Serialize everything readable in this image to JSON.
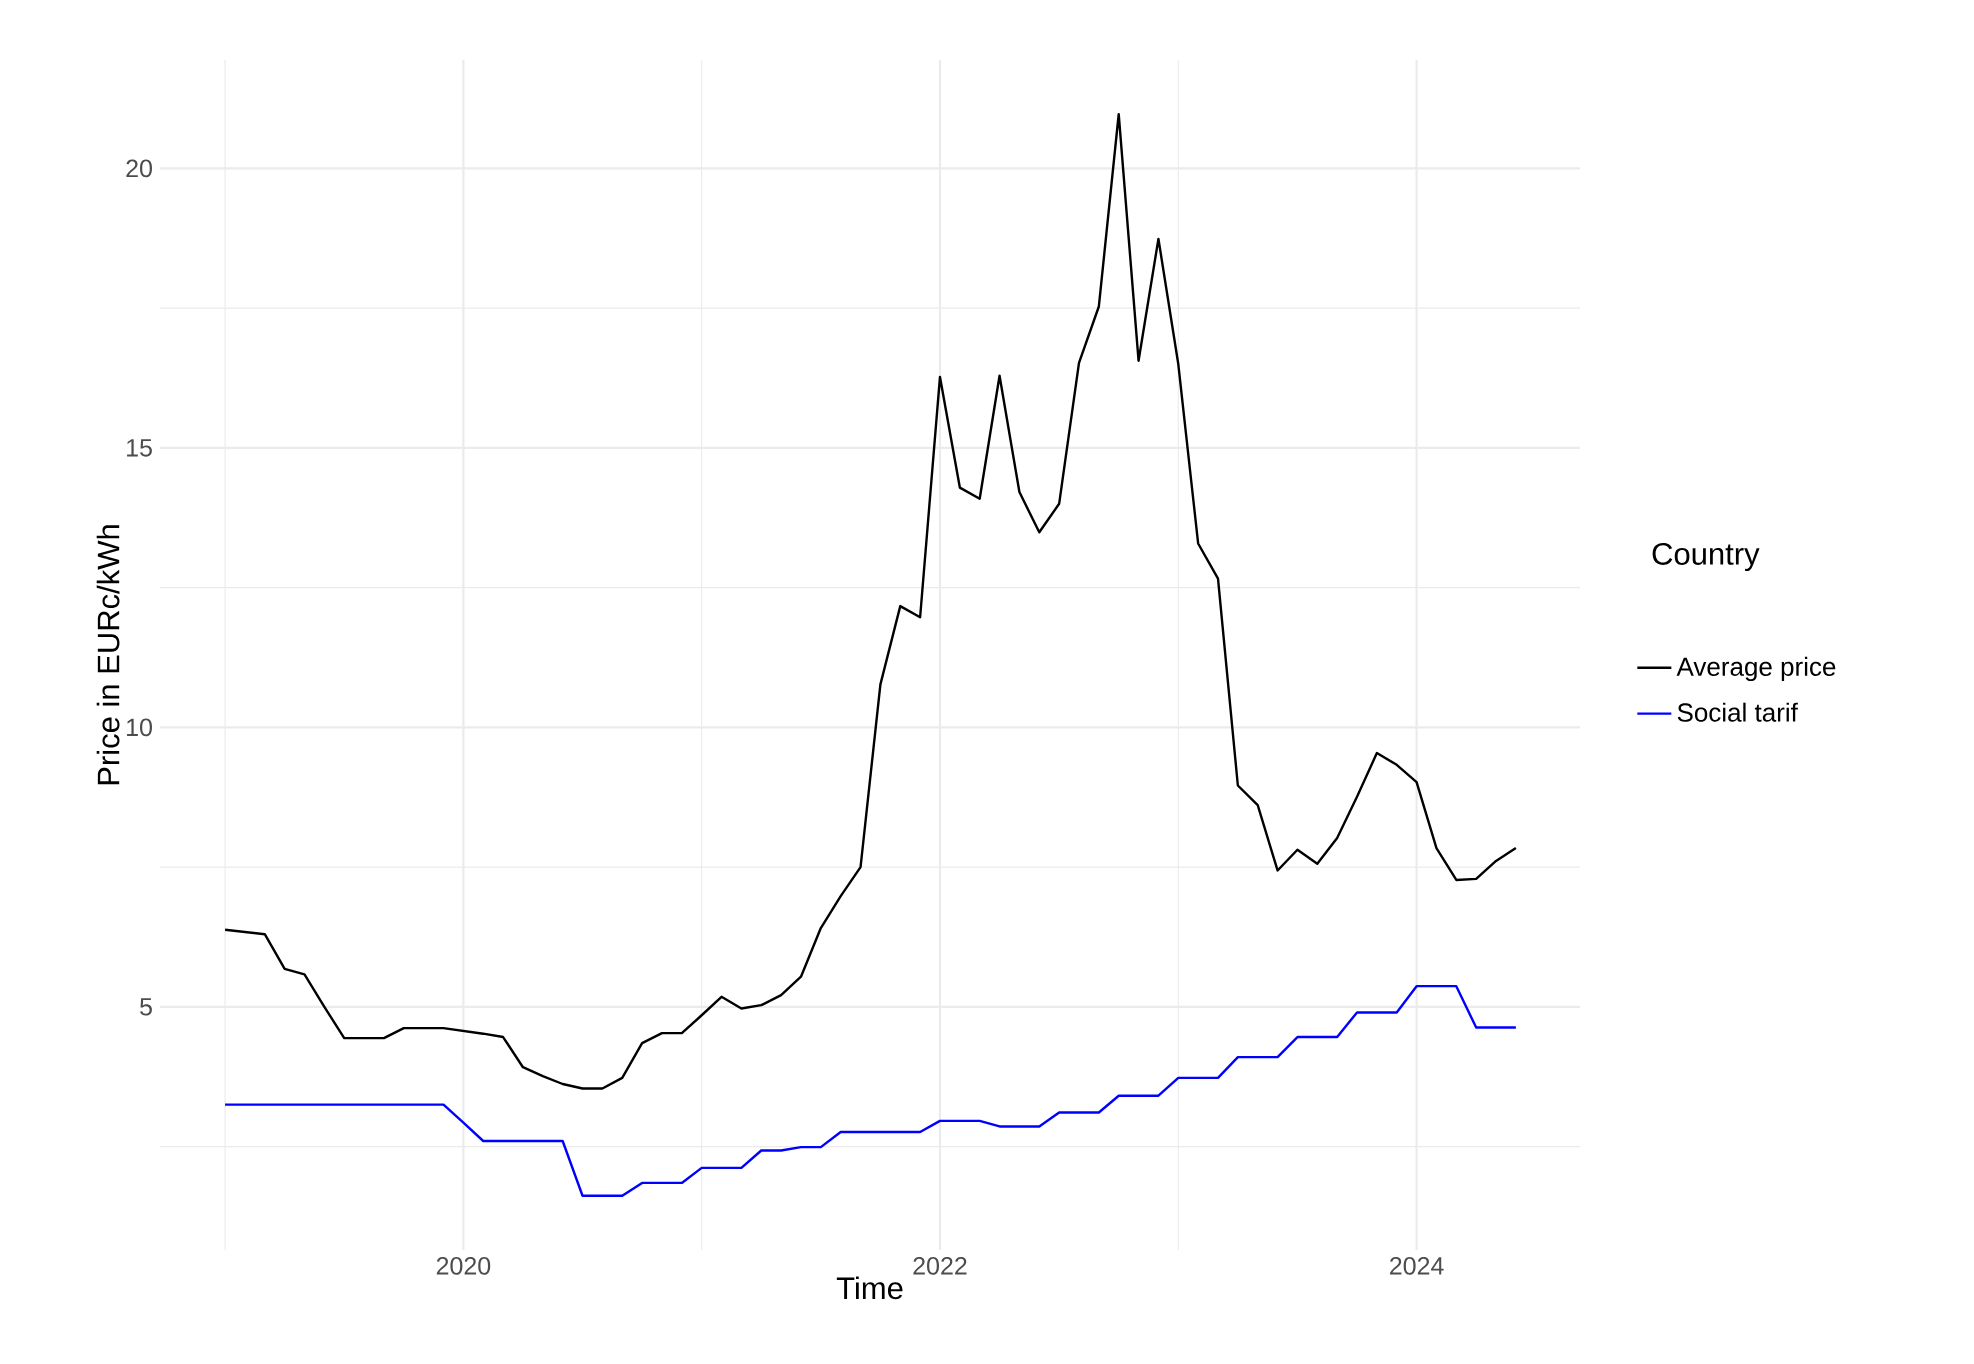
{
  "chart_data": {
    "type": "line",
    "xlabel": "Time",
    "ylabel": "Price in EURc/kWh",
    "legend_title": "Country",
    "legend": "right",
    "grid": true,
    "x": [
      "2019-01",
      "2019-02",
      "2019-03",
      "2019-04",
      "2019-05",
      "2019-06",
      "2019-07",
      "2019-08",
      "2019-09",
      "2019-10",
      "2019-11",
      "2019-12",
      "2020-01",
      "2020-02",
      "2020-03",
      "2020-04",
      "2020-05",
      "2020-06",
      "2020-07",
      "2020-08",
      "2020-09",
      "2020-10",
      "2020-11",
      "2020-12",
      "2021-01",
      "2021-02",
      "2021-03",
      "2021-04",
      "2021-05",
      "2021-06",
      "2021-07",
      "2021-08",
      "2021-09",
      "2021-10",
      "2021-11",
      "2021-12",
      "2022-01",
      "2022-02",
      "2022-03",
      "2022-04",
      "2022-05",
      "2022-06",
      "2022-07",
      "2022-08",
      "2022-09",
      "2022-10",
      "2022-11",
      "2022-12",
      "2023-01",
      "2023-02",
      "2023-03",
      "2023-04",
      "2023-05",
      "2023-06",
      "2023-07",
      "2023-08",
      "2023-09",
      "2023-10",
      "2023-11",
      "2023-12",
      "2024-01",
      "2024-02",
      "2024-03",
      "2024-04",
      "2024-05",
      "2024-06"
    ],
    "xlim": [
      "2018-09-23",
      "2024-09-08"
    ],
    "xticks": [
      "2020",
      "2022",
      "2024"
    ],
    "ylim": [
      0.65,
      21.94
    ],
    "yticks": [
      5,
      10,
      15,
      20
    ],
    "series": [
      {
        "name": "Average price",
        "color": "#000000",
        "values": [
          6.38,
          6.34,
          6.3,
          5.68,
          5.58,
          5.0,
          4.44,
          4.44,
          4.44,
          4.62,
          4.62,
          4.62,
          4.57,
          4.52,
          4.46,
          3.92,
          3.76,
          3.62,
          3.54,
          3.54,
          3.73,
          4.35,
          4.53,
          4.53,
          4.85,
          5.18,
          4.97,
          5.03,
          5.21,
          5.54,
          6.41,
          6.98,
          7.5,
          10.77,
          12.17,
          11.97,
          16.27,
          14.29,
          14.09,
          16.29,
          14.21,
          13.49,
          14.0,
          16.52,
          17.53,
          20.97,
          16.56,
          18.74,
          16.5,
          13.29,
          12.66,
          8.96,
          8.61,
          7.44,
          7.81,
          7.56,
          8.02,
          8.76,
          9.54,
          9.33,
          9.02,
          7.84,
          7.27,
          7.29,
          7.61,
          7.84
        ]
      },
      {
        "name": "Social tarif",
        "color": "#0000ff",
        "values": [
          3.25,
          3.25,
          3.25,
          3.25,
          3.25,
          3.25,
          3.25,
          3.25,
          3.25,
          3.25,
          3.25,
          3.25,
          2.93,
          2.6,
          2.6,
          2.6,
          2.6,
          2.6,
          1.62,
          1.62,
          1.62,
          1.85,
          1.85,
          1.85,
          2.12,
          2.12,
          2.12,
          2.43,
          2.43,
          2.49,
          2.49,
          2.76,
          2.76,
          2.76,
          2.76,
          2.76,
          2.96,
          2.96,
          2.96,
          2.86,
          2.86,
          2.86,
          3.11,
          3.11,
          3.11,
          3.41,
          3.41,
          3.41,
          3.73,
          3.73,
          3.73,
          4.1,
          4.1,
          4.1,
          4.46,
          4.46,
          4.46,
          4.9,
          4.9,
          4.9,
          5.37,
          5.37,
          5.37,
          4.63,
          4.63,
          4.63
        ]
      }
    ]
  }
}
